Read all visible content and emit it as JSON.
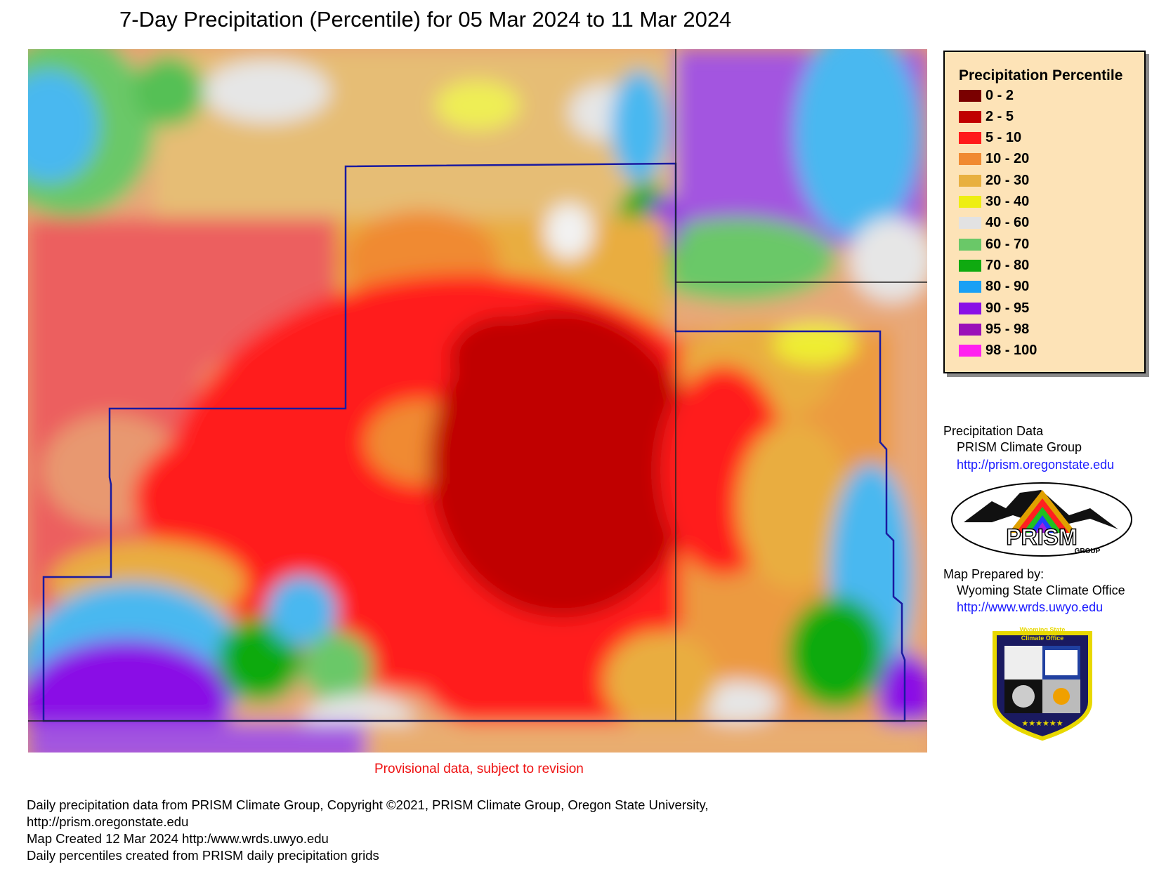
{
  "title": "7-Day Precipitation (Percentile) for 05 Mar 2024 to 11 Mar 2024",
  "legend": {
    "title": "Precipitation Percentile",
    "items": [
      {
        "label": "0 - 2",
        "color": "#7a0000"
      },
      {
        "label": "2 - 5",
        "color": "#c00000"
      },
      {
        "label": "5 - 10",
        "color": "#ff1a1a"
      },
      {
        "label": "10 - 20",
        "color": "#f08a32"
      },
      {
        "label": "20 - 30",
        "color": "#e8b040"
      },
      {
        "label": "30 - 40",
        "color": "#eeee11"
      },
      {
        "label": "40 - 60",
        "color": "#e2e2e2"
      },
      {
        "label": "60 - 70",
        "color": "#6ac868"
      },
      {
        "label": "70 - 80",
        "color": "#0faa10"
      },
      {
        "label": "80 - 90",
        "color": "#1aa0f5"
      },
      {
        "label": "90 - 95",
        "color": "#8a10e6"
      },
      {
        "label": "95 - 98",
        "color": "#9a10b8"
      },
      {
        "label": "98 - 100",
        "color": "#ff20f0"
      }
    ]
  },
  "credits": {
    "data_heading": "Precipitation Data",
    "data_org": "PRISM Climate Group",
    "data_url": "http://prism.oregonstate.edu",
    "prism_logo_text": "PRISM",
    "prism_logo_sub": "GROUP",
    "prepared_heading": "Map Prepared by:",
    "prepared_org": "Wyoming State Climate Office",
    "prepared_url": "http://www.wrds.uwyo.edu",
    "wsco_logo_text_1": "Wyoming State",
    "wsco_logo_text_2": "Climate Office"
  },
  "provisional": "Provisional data, subject to revision",
  "footer": {
    "line1": "Daily precipitation data from PRISM Climate Group, Copyright ©2021, PRISM Climate Group, Oregon State University,",
    "line2": "http://prism.oregonstate.edu",
    "line3": "Map Created 12 Mar 2024 http:/www.wrds.uwyo.edu",
    "line4": "Daily percentiles created from PRISM daily precipitation grids"
  }
}
